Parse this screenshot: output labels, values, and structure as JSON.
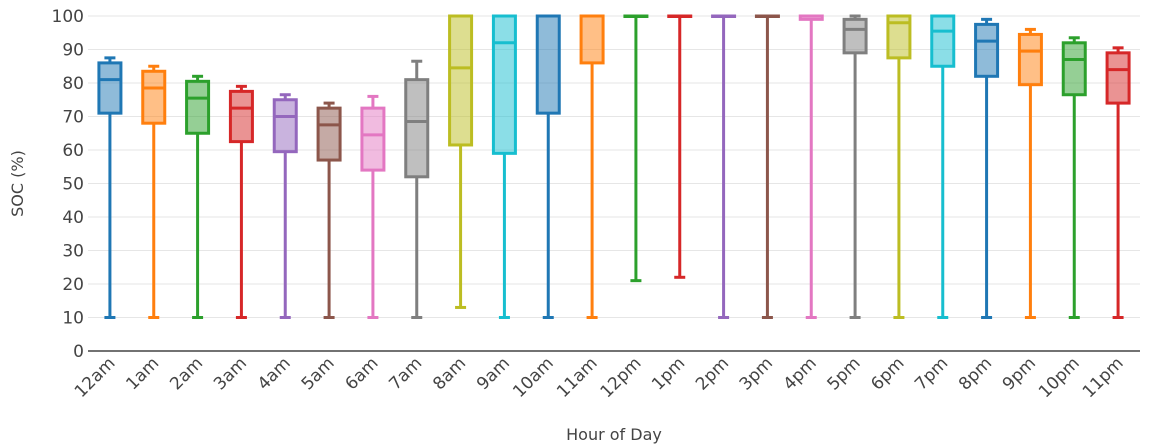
{
  "chart_data": {
    "type": "box",
    "title": "",
    "xlabel": "Hour of Day",
    "ylabel": "SOC (%)",
    "ylim": [
      0,
      100
    ],
    "yticks": [
      0,
      10,
      20,
      30,
      40,
      50,
      60,
      70,
      80,
      90,
      100
    ],
    "grid": true,
    "legend": "none",
    "boxes": [
      {
        "category": "12am",
        "min": 10,
        "q1": 71,
        "median": 81,
        "q3": 86,
        "max": 87.5,
        "color": "#1f77b4"
      },
      {
        "category": "1am",
        "min": 10,
        "q1": 68,
        "median": 78.5,
        "q3": 83.5,
        "max": 85,
        "color": "#ff7f0e"
      },
      {
        "category": "2am",
        "min": 10,
        "q1": 65,
        "median": 75.5,
        "q3": 80.5,
        "max": 82,
        "color": "#2ca02c"
      },
      {
        "category": "3am",
        "min": 10,
        "q1": 62.5,
        "median": 72.5,
        "q3": 77.5,
        "max": 79,
        "color": "#d62728"
      },
      {
        "category": "4am",
        "min": 10,
        "q1": 59.5,
        "median": 70,
        "q3": 75,
        "max": 76.5,
        "color": "#9467bd"
      },
      {
        "category": "5am",
        "min": 10,
        "q1": 57,
        "median": 67.5,
        "q3": 72.5,
        "max": 74,
        "color": "#8c564b"
      },
      {
        "category": "6am",
        "min": 10,
        "q1": 54,
        "median": 64.5,
        "q3": 72.5,
        "max": 76,
        "color": "#e377c2"
      },
      {
        "category": "7am",
        "min": 10,
        "q1": 52,
        "median": 68.5,
        "q3": 81,
        "max": 86.5,
        "color": "#7f7f7f"
      },
      {
        "category": "8am",
        "min": 13,
        "q1": 61.5,
        "median": 84.5,
        "q3": 100,
        "max": 100,
        "color": "#bcbd22"
      },
      {
        "category": "9am",
        "min": 10,
        "q1": 59,
        "median": 92,
        "q3": 100,
        "max": 100,
        "color": "#17becf"
      },
      {
        "category": "10am",
        "min": 10,
        "q1": 71,
        "median": 100,
        "q3": 100,
        "max": 100,
        "color": "#1f77b4"
      },
      {
        "category": "11am",
        "min": 10,
        "q1": 86,
        "median": 100,
        "q3": 100,
        "max": 100,
        "color": "#ff7f0e"
      },
      {
        "category": "12pm",
        "min": 21,
        "q1": 100,
        "median": 100,
        "q3": 100,
        "max": 100,
        "color": "#2ca02c"
      },
      {
        "category": "1pm",
        "min": 22,
        "q1": 100,
        "median": 100,
        "q3": 100,
        "max": 100,
        "color": "#d62728"
      },
      {
        "category": "2pm",
        "min": 10,
        "q1": 100,
        "median": 100,
        "q3": 100,
        "max": 100,
        "color": "#9467bd"
      },
      {
        "category": "3pm",
        "min": 10,
        "q1": 100,
        "median": 100,
        "q3": 100,
        "max": 100,
        "color": "#8c564b"
      },
      {
        "category": "4pm",
        "min": 10,
        "q1": 99,
        "median": 100,
        "q3": 100,
        "max": 100,
        "color": "#e377c2"
      },
      {
        "category": "5pm",
        "min": 10,
        "q1": 89,
        "median": 96,
        "q3": 99,
        "max": 100,
        "color": "#7f7f7f"
      },
      {
        "category": "6pm",
        "min": 10,
        "q1": 87.5,
        "median": 98,
        "q3": 100,
        "max": 100,
        "color": "#bcbd22"
      },
      {
        "category": "7pm",
        "min": 10,
        "q1": 85,
        "median": 95.5,
        "q3": 100,
        "max": 100,
        "color": "#17becf"
      },
      {
        "category": "8pm",
        "min": 10,
        "q1": 82,
        "median": 92.5,
        "q3": 97.5,
        "max": 99,
        "color": "#1f77b4"
      },
      {
        "category": "9pm",
        "min": 10,
        "q1": 79.5,
        "median": 89.5,
        "q3": 94.5,
        "max": 96,
        "color": "#ff7f0e"
      },
      {
        "category": "10pm",
        "min": 10,
        "q1": 76.5,
        "median": 87,
        "q3": 92,
        "max": 93.5,
        "color": "#2ca02c"
      },
      {
        "category": "11pm",
        "min": 10,
        "q1": 74,
        "median": 84,
        "q3": 89,
        "max": 90.5,
        "color": "#d62728"
      }
    ]
  }
}
